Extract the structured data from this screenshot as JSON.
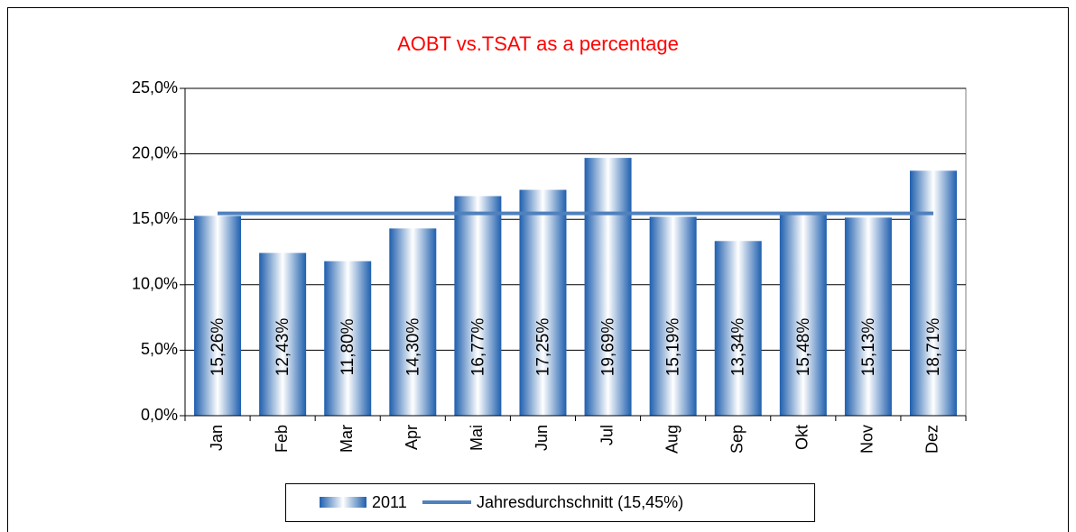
{
  "chart_data": {
    "type": "bar",
    "title": "AOBT vs.TSAT as a percentage",
    "categories": [
      "Jan",
      "Feb",
      "Mar",
      "Apr",
      "Mai",
      "Jun",
      "Jul",
      "Aug",
      "Sep",
      "Okt",
      "Nov",
      "Dez"
    ],
    "series": [
      {
        "name": "2011",
        "type": "bar",
        "color": "#1f5fae",
        "values": [
          15.26,
          12.43,
          11.8,
          14.3,
          16.77,
          17.25,
          19.69,
          15.19,
          13.34,
          15.48,
          15.13,
          18.71
        ],
        "value_labels": [
          "15,26%",
          "12,43%",
          "11,80%",
          "14,30%",
          "16,77%",
          "17,25%",
          "19,69%",
          "15,19%",
          "13,34%",
          "15,48%",
          "15,13%",
          "18,71%"
        ]
      },
      {
        "name": "Jahresdurchschnitt (15,45%)",
        "type": "line",
        "color": "#4f81bd",
        "values": [
          15.45,
          15.45,
          15.45,
          15.45,
          15.45,
          15.45,
          15.45,
          15.45,
          15.45,
          15.45,
          15.45,
          15.45
        ]
      }
    ],
    "ylim": [
      0,
      25
    ],
    "yticks": [
      {
        "value": 0,
        "label": "0,0%"
      },
      {
        "value": 5,
        "label": "5,0%"
      },
      {
        "value": 10,
        "label": "10,0%"
      },
      {
        "value": 15,
        "label": "15,0%"
      },
      {
        "value": 20,
        "label": "20,0%"
      },
      {
        "value": 25,
        "label": "25,0%"
      }
    ],
    "grid": true,
    "legend": "bottom"
  }
}
